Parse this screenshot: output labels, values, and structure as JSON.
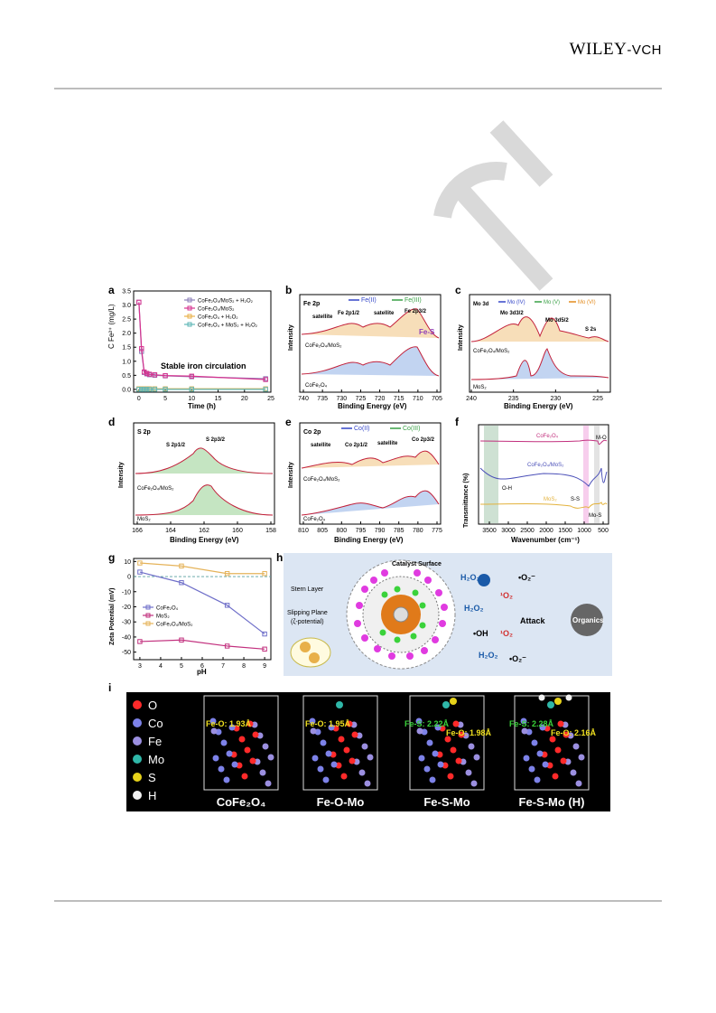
{
  "header": {
    "publisher": "WILEY",
    "publisher_suffix": "-VCH",
    "watermark": "CH"
  },
  "panels": {
    "a": {
      "label": "a",
      "ylabel": "C Fe²⁺ (mg/L)",
      "xlabel": "Time (h)",
      "annotation": "Stable iron circulation",
      "legend": [
        "CoFe₂O₄/MoS₂ + H₂O₂",
        "CoFe₂O₄/MoS₂",
        "CoFe₂O₄ + H₂O₂",
        "CoFe₂O₄ + MoS₂ + H₂O₂"
      ],
      "xticks": [
        "0",
        "5",
        "10",
        "15",
        "20",
        "25"
      ],
      "yticks": [
        "0.0",
        "0.5",
        "1.0",
        "1.5",
        "2.0",
        "2.5",
        "3.0",
        "3.5"
      ]
    },
    "b": {
      "label": "b",
      "title": "Fe 2p",
      "legend": [
        "Fe(II)",
        "Fe(III)"
      ],
      "xlabel": "Binding Energy (eV)",
      "ylabel": "Intensity",
      "xticks": [
        "740",
        "735",
        "730",
        "725",
        "720",
        "715",
        "710",
        "705"
      ],
      "samples": [
        "CoFe₂O₄/MoS₂",
        "CoFe₂O₄"
      ],
      "annotations": [
        "satellite",
        "Fe 2p1/2",
        "satellite",
        "Fe 2p3/2",
        "Fe-S"
      ]
    },
    "c": {
      "label": "c",
      "title": "Mo 3d",
      "legend": [
        "Mo (IV)",
        "Mo (V)",
        "Mo (VI)"
      ],
      "xlabel": "Binding Energy (eV)",
      "ylabel": "Intensity",
      "xticks": [
        "240",
        "235",
        "230",
        "225"
      ],
      "samples": [
        "CoFe₂O₄/MoS₂",
        "MoS₂"
      ],
      "annotations": [
        "Mo 3d3/2",
        "Mo 3d5/2",
        "S 2s"
      ]
    },
    "d": {
      "label": "d",
      "title": "S 2p",
      "xlabel": "Binding Energy (eV)",
      "ylabel": "Intensity",
      "xticks": [
        "166",
        "164",
        "162",
        "160",
        "158"
      ],
      "samples": [
        "CoFe₂O₄/MoS₂",
        "MoS₂"
      ],
      "annotations": [
        "S 2p1/2",
        "S 2p3/2"
      ]
    },
    "e": {
      "label": "e",
      "title": "Co 2p",
      "legend": [
        "Co(II)",
        "Co(III)"
      ],
      "xlabel": "Binding Energy (eV)",
      "ylabel": "Intensity",
      "xticks": [
        "810",
        "805",
        "800",
        "795",
        "790",
        "785",
        "780",
        "775"
      ],
      "samples": [
        "CoFe₂O₄/MoS₂",
        "CoFe₂O₄"
      ],
      "annotations": [
        "satellite",
        "Co 2p1/2",
        "satellite",
        "Co 2p3/2"
      ]
    },
    "f": {
      "label": "f",
      "xlabel": "Wavenumber (cm⁻¹)",
      "ylabel": "Transmittance (%)",
      "xticks": [
        "3500",
        "3000",
        "2500",
        "2000",
        "1500",
        "1000",
        "500"
      ],
      "samples": [
        "CoFe₂O₄",
        "CoFe₂O₄/MoS₂",
        "MoS₂"
      ],
      "annotations": [
        "M-O",
        "O-H",
        "S-S",
        "Mo-S"
      ]
    },
    "g": {
      "label": "g",
      "xlabel": "pH",
      "ylabel": "Zeta Potential (mV)",
      "legend": [
        "CoFe₂O₄",
        "MoS₂",
        "CoFe₂O₄/MoS₂"
      ],
      "xticks": [
        "3",
        "4",
        "5",
        "6",
        "7",
        "8",
        "9"
      ],
      "yticks": [
        "10",
        "0",
        "-10",
        "-20",
        "-30",
        "-40",
        "-50"
      ]
    },
    "h": {
      "label": "h",
      "texts": [
        "Catalyst Surface",
        "Stern Layer",
        "Slipping Plane",
        "(ζ-potential)",
        "H₂O₂",
        "•O₂⁻",
        "¹O₂",
        "Attack",
        "Organics",
        "H₂O₂",
        "•OH",
        "¹O₂",
        "H₂O₂",
        "•O₂⁻"
      ]
    },
    "i": {
      "label": "i",
      "legend": [
        "O",
        "Co",
        "Fe",
        "Mo",
        "S",
        "H"
      ],
      "models": [
        {
          "name": "CoFe₂O₄",
          "bonds": [
            "Fe-O: 1.93Å"
          ]
        },
        {
          "name": "Fe-O-Mo",
          "bonds": [
            "Fe-O: 1.95Å"
          ]
        },
        {
          "name": "Fe-S-Mo",
          "bonds": [
            "Fe-S: 2.22Å",
            "Fe-O: 1.98Å"
          ]
        },
        {
          "name": "Fe-S-Mo (H)",
          "bonds": [
            "Fe-S: 2.28Å",
            "Fe-O: 2.16Å"
          ]
        }
      ]
    }
  },
  "chart_data": [
    {
      "type": "line",
      "title": "",
      "xlabel": "Time (h)",
      "ylabel": "C Fe²⁺ (mg/L)",
      "xlim": [
        -1,
        25
      ],
      "ylim": [
        -0.1,
        3.5
      ],
      "x": [
        0,
        0.5,
        1,
        1.5,
        2,
        3,
        5,
        10,
        24
      ],
      "series": [
        {
          "name": "CoFe₂O₄/MoS₂ + H₂O₂",
          "values": [
            3.1,
            1.35,
            0.6,
            0.55,
            0.52,
            0.5,
            0.48,
            0.45,
            0.38
          ],
          "color": "#8b7fb8"
        },
        {
          "name": "CoFe₂O₄/MoS₂",
          "values": [
            3.1,
            1.45,
            0.62,
            0.57,
            0.54,
            0.52,
            0.49,
            0.47,
            0.35
          ],
          "color": "#d6338f"
        },
        {
          "name": "CoFe₂O₄ + H₂O₂",
          "values": [
            0.02,
            0.02,
            0.02,
            0.02,
            0.02,
            0.02,
            0.02,
            0.02,
            0.02
          ],
          "color": "#e8b04a"
        },
        {
          "name": "CoFe₂O₄ + MoS₂ + H₂O₂",
          "values": [
            0.0,
            0.0,
            0.0,
            0.0,
            0.0,
            0.0,
            0.0,
            0.0,
            0.0
          ],
          "color": "#5fb6b6"
        }
      ]
    },
    {
      "type": "line",
      "title": "",
      "xlabel": "pH",
      "ylabel": "Zeta Potential (mV)",
      "xlim": [
        2.7,
        9.3
      ],
      "ylim": [
        -55,
        12
      ],
      "x": [
        3,
        5,
        7.2,
        9
      ],
      "series": [
        {
          "name": "CoFe₂O₄",
          "values": [
            3,
            -4,
            -19,
            -38
          ],
          "color": "#6f6fc9"
        },
        {
          "name": "MoS₂",
          "values": [
            -43,
            -42,
            -46,
            -48
          ],
          "color": "#c2307e"
        },
        {
          "name": "CoFe₂O₄/MoS₂",
          "values": [
            9,
            7,
            2,
            2
          ],
          "color": "#e5b35a"
        }
      ]
    }
  ]
}
